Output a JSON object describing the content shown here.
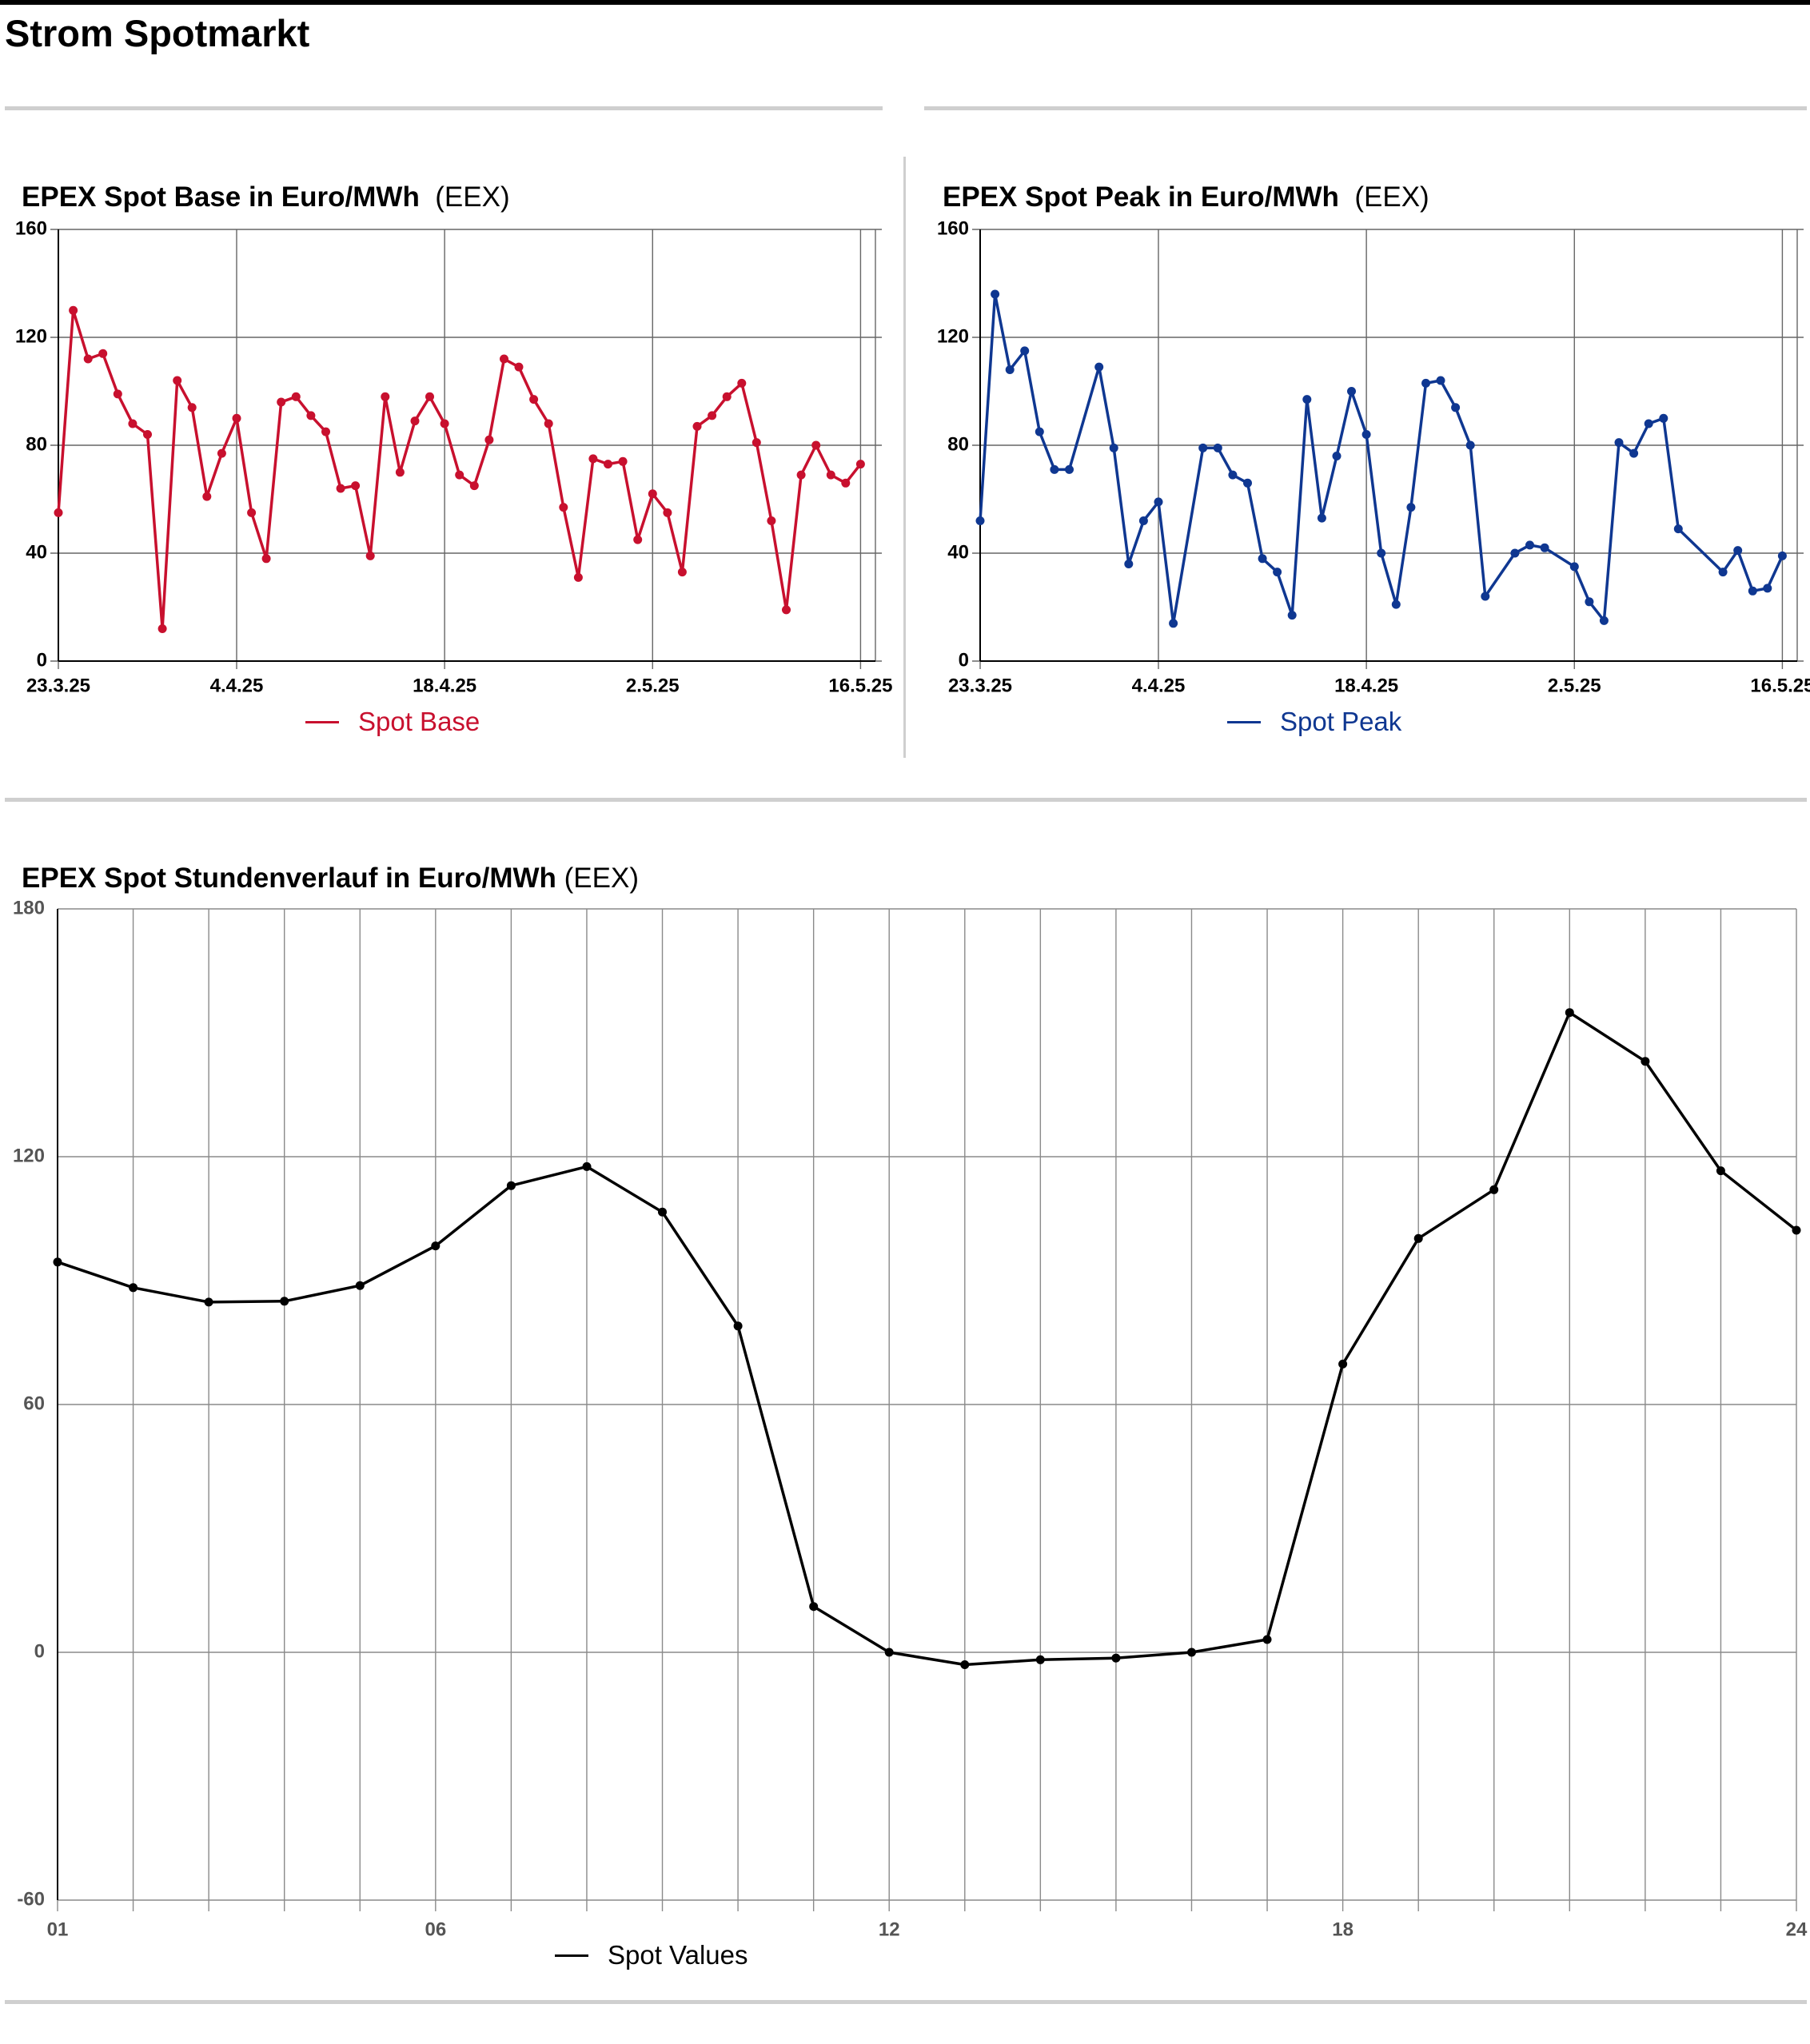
{
  "page": {
    "title": "Strom Spotmarkt"
  },
  "charts": {
    "base": {
      "title_bold": "EPEX Spot Base in Euro/MWh",
      "title_source": "(EEX)",
      "legend": "Spot Base"
    },
    "peak": {
      "title_bold": "EPEX Spot Peak in Euro/MWh",
      "title_source": "(EEX)",
      "legend": "Spot Peak"
    },
    "hourly": {
      "title_bold": "EPEX Spot Stundenverlauf in Euro/MWh",
      "title_source": "(EEX)",
      "legend": "Spot Values"
    }
  },
  "colors": {
    "base": "#c8102e",
    "peak": "#0f3791",
    "hourly": "#000000",
    "grid": "#666666",
    "rule": "#cfcfcf"
  },
  "chart_data": [
    {
      "type": "line",
      "title": "EPEX Spot Base in Euro/MWh (EEX)",
      "x_type": "date",
      "x_range": [
        "2025-03-23",
        "2025-05-17"
      ],
      "ylim": [
        0,
        160
      ],
      "yticks": [
        0,
        40,
        80,
        120,
        160
      ],
      "xticks": [
        {
          "date": "2025-03-23",
          "label": "23.3.25"
        },
        {
          "date": "2025-04-04",
          "label": "4.4.25"
        },
        {
          "date": "2025-04-18",
          "label": "18.4.25"
        },
        {
          "date": "2025-05-02",
          "label": "2.5.25"
        },
        {
          "date": "2025-05-16",
          "label": "16.5.25"
        }
      ],
      "grid": true,
      "legend_position": "bottom",
      "series": [
        {
          "name": "Spot Base",
          "color": "#c8102e",
          "points": [
            [
              "2025-03-23",
              55
            ],
            [
              "2025-03-24",
              130
            ],
            [
              "2025-03-25",
              112
            ],
            [
              "2025-03-26",
              114
            ],
            [
              "2025-03-27",
              99
            ],
            [
              "2025-03-28",
              88
            ],
            [
              "2025-03-29",
              84
            ],
            [
              "2025-03-30",
              12
            ],
            [
              "2025-03-31",
              104
            ],
            [
              "2025-04-01",
              94
            ],
            [
              "2025-04-02",
              61
            ],
            [
              "2025-04-03",
              77
            ],
            [
              "2025-04-04",
              90
            ],
            [
              "2025-04-05",
              55
            ],
            [
              "2025-04-06",
              38
            ],
            [
              "2025-04-07",
              96
            ],
            [
              "2025-04-08",
              98
            ],
            [
              "2025-04-09",
              91
            ],
            [
              "2025-04-10",
              85
            ],
            [
              "2025-04-11",
              64
            ],
            [
              "2025-04-12",
              65
            ],
            [
              "2025-04-13",
              39
            ],
            [
              "2025-04-14",
              98
            ],
            [
              "2025-04-15",
              70
            ],
            [
              "2025-04-16",
              89
            ],
            [
              "2025-04-17",
              98
            ],
            [
              "2025-04-18",
              88
            ],
            [
              "2025-04-19",
              69
            ],
            [
              "2025-04-20",
              65
            ],
            [
              "2025-04-21",
              82
            ],
            [
              "2025-04-22",
              112
            ],
            [
              "2025-04-23",
              109
            ],
            [
              "2025-04-24",
              97
            ],
            [
              "2025-04-25",
              88
            ],
            [
              "2025-04-26",
              57
            ],
            [
              "2025-04-27",
              31
            ],
            [
              "2025-04-28",
              75
            ],
            [
              "2025-04-29",
              73
            ],
            [
              "2025-04-30",
              74
            ],
            [
              "2025-05-01",
              45
            ],
            [
              "2025-05-02",
              62
            ],
            [
              "2025-05-03",
              55
            ],
            [
              "2025-05-04",
              33
            ],
            [
              "2025-05-05",
              87
            ],
            [
              "2025-05-06",
              91
            ],
            [
              "2025-05-07",
              98
            ],
            [
              "2025-05-08",
              103
            ],
            [
              "2025-05-09",
              81
            ],
            [
              "2025-05-10",
              52
            ],
            [
              "2025-05-11",
              19
            ],
            [
              "2025-05-12",
              69
            ],
            [
              "2025-05-13",
              80
            ],
            [
              "2025-05-14",
              69
            ],
            [
              "2025-05-15",
              66
            ],
            [
              "2025-05-16",
              73
            ]
          ]
        }
      ]
    },
    {
      "type": "line",
      "title": "EPEX Spot Peak in Euro/MWh (EEX)",
      "x_type": "date",
      "x_range": [
        "2025-03-23",
        "2025-05-17"
      ],
      "ylim": [
        0,
        160
      ],
      "yticks": [
        0,
        40,
        80,
        120,
        160
      ],
      "xticks": [
        {
          "date": "2025-03-23",
          "label": "23.3.25"
        },
        {
          "date": "2025-04-04",
          "label": "4.4.25"
        },
        {
          "date": "2025-04-18",
          "label": "18.4.25"
        },
        {
          "date": "2025-05-02",
          "label": "2.5.25"
        },
        {
          "date": "2025-05-16",
          "label": "16.5.25"
        }
      ],
      "grid": true,
      "legend_position": "bottom",
      "series": [
        {
          "name": "Spot Peak",
          "color": "#0f3791",
          "points": [
            [
              "2025-03-23",
              52
            ],
            [
              "2025-03-24",
              136
            ],
            [
              "2025-03-25",
              108
            ],
            [
              "2025-03-26",
              115
            ],
            [
              "2025-03-27",
              85
            ],
            [
              "2025-03-28",
              71
            ],
            [
              "2025-03-29",
              71
            ],
            [
              "2025-03-31",
              109
            ],
            [
              "2025-04-01",
              79
            ],
            [
              "2025-04-02",
              36
            ],
            [
              "2025-04-03",
              52
            ],
            [
              "2025-04-04",
              59
            ],
            [
              "2025-04-05",
              14
            ],
            [
              "2025-04-07",
              79
            ],
            [
              "2025-04-08",
              79
            ],
            [
              "2025-04-09",
              69
            ],
            [
              "2025-04-10",
              66
            ],
            [
              "2025-04-11",
              38
            ],
            [
              "2025-04-12",
              33
            ],
            [
              "2025-04-13",
              17
            ],
            [
              "2025-04-14",
              97
            ],
            [
              "2025-04-15",
              53
            ],
            [
              "2025-04-16",
              76
            ],
            [
              "2025-04-17",
              100
            ],
            [
              "2025-04-18",
              84
            ],
            [
              "2025-04-19",
              40
            ],
            [
              "2025-04-20",
              21
            ],
            [
              "2025-04-21",
              57
            ],
            [
              "2025-04-22",
              103
            ],
            [
              "2025-04-23",
              104
            ],
            [
              "2025-04-24",
              94
            ],
            [
              "2025-04-25",
              80
            ],
            [
              "2025-04-26",
              24
            ],
            [
              "2025-04-28",
              40
            ],
            [
              "2025-04-29",
              43
            ],
            [
              "2025-04-30",
              42
            ],
            [
              "2025-05-02",
              35
            ],
            [
              "2025-05-03",
              22
            ],
            [
              "2025-05-04",
              15
            ],
            [
              "2025-05-05",
              81
            ],
            [
              "2025-05-06",
              77
            ],
            [
              "2025-05-07",
              88
            ],
            [
              "2025-05-08",
              90
            ],
            [
              "2025-05-09",
              49
            ],
            [
              "2025-05-12",
              33
            ],
            [
              "2025-05-13",
              41
            ],
            [
              "2025-05-14",
              26
            ],
            [
              "2025-05-15",
              27
            ],
            [
              "2025-05-16",
              39
            ]
          ]
        }
      ]
    },
    {
      "type": "line",
      "title": "EPEX Spot Stundenverlauf in Euro/MWh (EEX)",
      "xlim": [
        1,
        24
      ],
      "ylim": [
        -60,
        180
      ],
      "yticks": [
        -60,
        0,
        60,
        120,
        180
      ],
      "xticks": [
        1,
        6,
        12,
        18,
        24
      ],
      "xtick_labels": [
        "01",
        "06",
        "12",
        "18",
        "24"
      ],
      "x_gridlines": [
        1,
        2,
        3,
        4,
        5,
        6,
        7,
        8,
        9,
        10,
        11,
        12,
        13,
        14,
        15,
        16,
        17,
        18,
        19,
        20,
        21,
        22,
        23,
        24
      ],
      "grid": true,
      "legend_position": "bottom",
      "series": [
        {
          "name": "Spot Values",
          "color": "#000000",
          "x": [
            1,
            2,
            3,
            4,
            5,
            6,
            7,
            8,
            9,
            10,
            11,
            12,
            13,
            14,
            15,
            16,
            17,
            18,
            19,
            20,
            21,
            22,
            23,
            24
          ],
          "values": [
            94.5,
            88.3,
            84.8,
            85.0,
            88.8,
            98.4,
            113.0,
            117.6,
            106.6,
            79.0,
            11.1,
            0.0,
            -3.0,
            -1.8,
            -1.4,
            0.0,
            3.1,
            69.8,
            100.2,
            112.0,
            154.9,
            143.1,
            116.6,
            102.2
          ]
        }
      ]
    }
  ]
}
